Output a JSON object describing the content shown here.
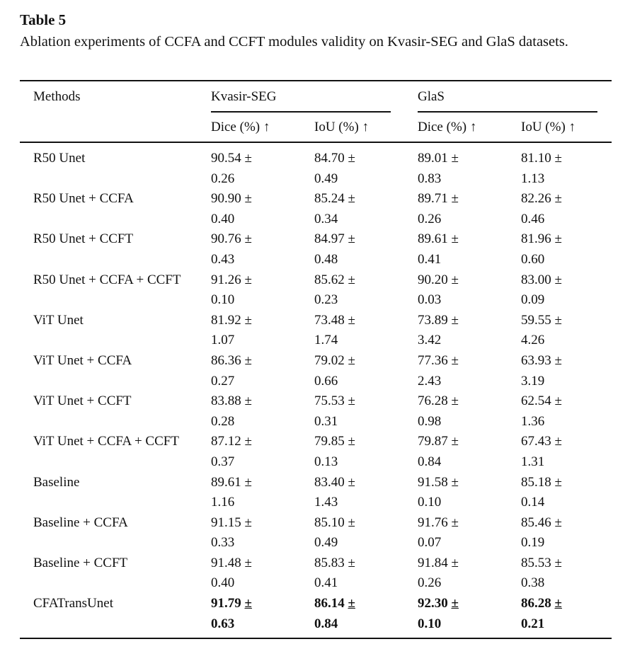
{
  "title": "Table 5",
  "caption": "Ablation experiments of CCFA and CCFT modules validity on Kvasir-SEG and GlaS datasets.",
  "headers": {
    "methods": "Methods",
    "group1": "Kvasir-SEG",
    "group2": "GlaS",
    "dice": "Dice (%) ↑",
    "iou": "IoU (%) ↑"
  },
  "rows": [
    {
      "method": "R50 Unet",
      "vals": [
        [
          "90.54 ±",
          "0.26"
        ],
        [
          "84.70 ±",
          "0.49"
        ],
        [
          "89.01 ±",
          "0.83"
        ],
        [
          "81.10 ±",
          "1.13"
        ]
      ]
    },
    {
      "method": "R50 Unet + CCFA",
      "vals": [
        [
          "90.90 ±",
          "0.40"
        ],
        [
          "85.24 ±",
          "0.34"
        ],
        [
          "89.71 ±",
          "0.26"
        ],
        [
          "82.26 ±",
          "0.46"
        ]
      ]
    },
    {
      "method": "R50 Unet + CCFT",
      "vals": [
        [
          "90.76 ±",
          "0.43"
        ],
        [
          "84.97 ±",
          "0.48"
        ],
        [
          "89.61 ±",
          "0.41"
        ],
        [
          "81.96 ±",
          "0.60"
        ]
      ]
    },
    {
      "method": "R50 Unet + CCFA + CCFT",
      "vals": [
        [
          "91.26 ±",
          "0.10"
        ],
        [
          "85.62 ±",
          "0.23"
        ],
        [
          "90.20 ±",
          "0.03"
        ],
        [
          "83.00 ±",
          "0.09"
        ]
      ]
    },
    {
      "method": "ViT Unet",
      "vals": [
        [
          "81.92 ±",
          "1.07"
        ],
        [
          "73.48 ±",
          "1.74"
        ],
        [
          "73.89 ±",
          "3.42"
        ],
        [
          "59.55 ±",
          "4.26"
        ]
      ]
    },
    {
      "method": "ViT Unet + CCFA",
      "vals": [
        [
          "86.36 ±",
          "0.27"
        ],
        [
          "79.02 ±",
          "0.66"
        ],
        [
          "77.36 ±",
          "2.43"
        ],
        [
          "63.93 ±",
          "3.19"
        ]
      ]
    },
    {
      "method": "ViT Unet + CCFT",
      "vals": [
        [
          "83.88 ±",
          "0.28"
        ],
        [
          "75.53 ±",
          "0.31"
        ],
        [
          "76.28 ±",
          "0.98"
        ],
        [
          "62.54 ±",
          "1.36"
        ]
      ]
    },
    {
      "method": "ViT Unet + CCFA + CCFT",
      "vals": [
        [
          "87.12 ±",
          "0.37"
        ],
        [
          "79.85 ±",
          "0.13"
        ],
        [
          "79.87 ±",
          "0.84"
        ],
        [
          "67.43 ±",
          "1.31"
        ]
      ]
    },
    {
      "method": "Baseline",
      "vals": [
        [
          "89.61 ±",
          "1.16"
        ],
        [
          "83.40 ±",
          "1.43"
        ],
        [
          "91.58 ±",
          "0.10"
        ],
        [
          "85.18 ±",
          "0.14"
        ]
      ]
    },
    {
      "method": "Baseline + CCFA",
      "vals": [
        [
          "91.15 ±",
          "0.33"
        ],
        [
          "85.10 ±",
          "0.49"
        ],
        [
          "91.76 ±",
          "0.07"
        ],
        [
          "85.46 ±",
          "0.19"
        ]
      ]
    },
    {
      "method": "Baseline + CCFT",
      "vals": [
        [
          "91.48 ±",
          "0.40"
        ],
        [
          "85.83 ±",
          "0.41"
        ],
        [
          "91.84 ±",
          "0.26"
        ],
        [
          "85.53 ±",
          "0.38"
        ]
      ]
    },
    {
      "method": "CFATransUnet",
      "best": true,
      "vals": [
        [
          "91.79 ±",
          "0.63"
        ],
        [
          "86.14 ±",
          "0.84"
        ],
        [
          "92.30 ±",
          "0.10"
        ],
        [
          "86.28 ±",
          "0.21"
        ]
      ]
    }
  ]
}
